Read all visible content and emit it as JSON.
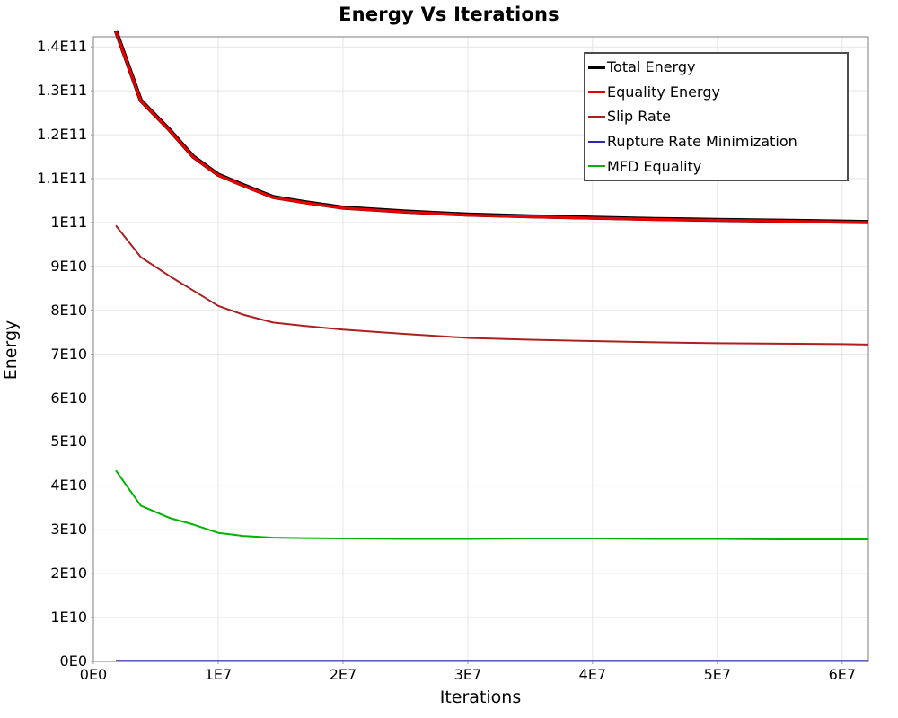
{
  "chart_data": {
    "type": "line",
    "title": "Energy Vs Iterations",
    "xlabel": "Iterations",
    "ylabel": "Energy",
    "xlim": [
      0,
      62100000.0
    ],
    "ylim": [
      0,
      142300000000.0
    ],
    "grid": true,
    "legend_position": "inside-top-right",
    "x_ticks": {
      "values": [
        0,
        10000000.0,
        20000000.0,
        30000000.0,
        40000000.0,
        50000000.0,
        60000000.0
      ],
      "labels": [
        "0E0",
        "1E7",
        "2E7",
        "3E7",
        "4E7",
        "5E7",
        "6E7"
      ]
    },
    "y_ticks": {
      "values": [
        0,
        10000000000.0,
        20000000000.0,
        30000000000.0,
        40000000000.0,
        50000000000.0,
        60000000000.0,
        70000000000.0,
        80000000000.0,
        90000000000.0,
        100000000000.0,
        110000000000.0,
        120000000000.0,
        130000000000.0,
        140000000000.0
      ],
      "labels": [
        "0E0",
        "1E10",
        "2E10",
        "3E10",
        "4E10",
        "5E10",
        "6E10",
        "7E10",
        "8E10",
        "9E10",
        "1E11",
        "1.1E11",
        "1.2E11",
        "1.3E11",
        "1.4E11"
      ]
    },
    "series": [
      {
        "name": "Total Energy",
        "color": "#000000",
        "width": 4.6,
        "x": [
          1800000.0,
          3800000.0,
          6100000.0,
          8000000.0,
          10000000.0,
          12000000.0,
          14400000.0,
          17000000.0,
          20000000.0,
          25000000.0,
          30000000.0,
          35000000.0,
          40000000.0,
          45000000.0,
          50000000.0,
          55000000.0,
          60000000.0,
          62100000.0
        ],
        "y": [
          143700000000.0,
          127800000000.0,
          121100000000.0,
          115000000000.0,
          110900000000.0,
          108500000000.0,
          105800000000.0,
          104600000000.0,
          103400000000.0,
          102500000000.0,
          101800000000.0,
          101400000000.0,
          101100000000.0,
          100800000000.0,
          100600000000.0,
          100400000000.0,
          100200000000.0,
          100100000000.0
        ]
      },
      {
        "name": "Equality Energy",
        "color": "#e60000",
        "width": 3.2,
        "x": [
          1800000.0,
          3800000.0,
          6100000.0,
          8000000.0,
          10000000.0,
          12000000.0,
          14400000.0,
          17000000.0,
          20000000.0,
          25000000.0,
          30000000.0,
          35000000.0,
          40000000.0,
          45000000.0,
          50000000.0,
          55000000.0,
          60000000.0,
          62100000.0
        ],
        "y": [
          143500000000.0,
          127700000000.0,
          121000000000.0,
          114900000000.0,
          110800000000.0,
          108400000000.0,
          105700000000.0,
          104500000000.0,
          103300000000.0,
          102400000000.0,
          101700000000.0,
          101300000000.0,
          101000000000.0,
          100700000000.0,
          100500000000.0,
          100300000000.0,
          100100000000.0,
          100000000000.0
        ]
      },
      {
        "name": "Slip Rate",
        "color": "#ab2020",
        "width": 2,
        "x": [
          1800000.0,
          3800000.0,
          6100000.0,
          8000000.0,
          10000000.0,
          12000000.0,
          14400000.0,
          17000000.0,
          20000000.0,
          25000000.0,
          30000000.0,
          35000000.0,
          40000000.0,
          45000000.0,
          50000000.0,
          55000000.0,
          60000000.0,
          62100000.0
        ],
        "y": [
          99300000000.0,
          92100000000.0,
          87800000000.0,
          84500000000.0,
          81000000000.0,
          79000000000.0,
          77200000000.0,
          76400000000.0,
          75600000000.0,
          74600000000.0,
          73700000000.0,
          73300000000.0,
          73000000000.0,
          72700000000.0,
          72500000000.0,
          72400000000.0,
          72300000000.0,
          72200000000.0
        ]
      },
      {
        "name": "Rupture Rate Minimization",
        "color": "#2929aa",
        "width": 2,
        "x": [
          1800000.0,
          3800000.0,
          6100000.0,
          8000000.0,
          10000000.0,
          12000000.0,
          14400000.0,
          17000000.0,
          20000000.0,
          25000000.0,
          30000000.0,
          35000000.0,
          40000000.0,
          45000000.0,
          50000000.0,
          55000000.0,
          60000000.0,
          62100000.0
        ],
        "y": [
          150000000.0,
          150000000.0,
          150000000.0,
          150000000.0,
          150000000.0,
          150000000.0,
          150000000.0,
          150000000.0,
          150000000.0,
          150000000.0,
          150000000.0,
          150000000.0,
          150000000.0,
          150000000.0,
          150000000.0,
          150000000.0,
          150000000.0,
          150000000.0
        ]
      },
      {
        "name": "MFD Equality",
        "color": "#00b300",
        "width": 2,
        "x": [
          1800000.0,
          3800000.0,
          6100000.0,
          8000000.0,
          10000000.0,
          12000000.0,
          14400000.0,
          17000000.0,
          20000000.0,
          25000000.0,
          30000000.0,
          35000000.0,
          40000000.0,
          45000000.0,
          50000000.0,
          55000000.0,
          60000000.0,
          62100000.0
        ],
        "y": [
          43500000000.0,
          35500000000.0,
          32700000000.0,
          31200000000.0,
          29300000000.0,
          28600000000.0,
          28200000000.0,
          28100000000.0,
          28000000000.0,
          27900000000.0,
          27900000000.0,
          28000000000.0,
          28000000000.0,
          27900000000.0,
          27900000000.0,
          27800000000.0,
          27800000000.0,
          27800000000.0
        ]
      }
    ],
    "colors": {
      "background": "#ffffff",
      "grid": "#e5e5e5",
      "plot_border": "#9c9c9c",
      "tick_mark": "#999999",
      "legend_border": "#4d4d4d",
      "text": "#000000"
    }
  }
}
